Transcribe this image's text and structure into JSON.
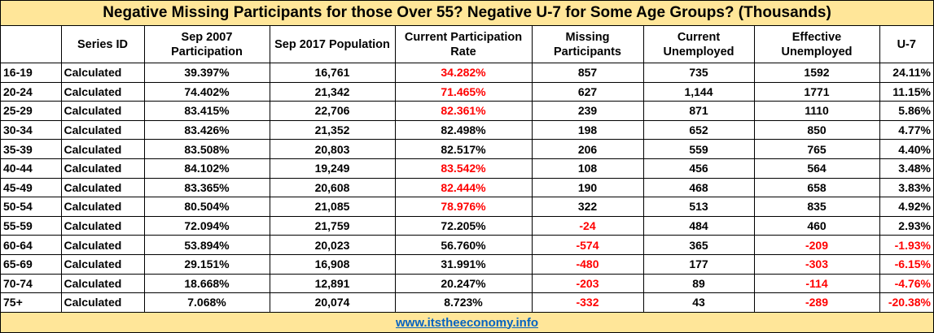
{
  "title": "Negative Missing Participants for those Over 55?  Negative U-7 for Some Age Groups? (Thousands)",
  "headers": {
    "age": "",
    "series_id": "Series ID",
    "sep2007": "Sep 2007 Participation",
    "sep2017": "Sep 2017 Population",
    "current_rate": "Current Participation Rate",
    "missing": "Missing Participants",
    "current_unemp": "Current Unemployed",
    "effective_unemp": "Effective Unemployed",
    "u7": "U-7"
  },
  "rows": [
    {
      "age": "16-19",
      "series_id": "Calculated",
      "sep2007": "39.397%",
      "sep2017": "16,761",
      "rate": "34.282%",
      "rate_red": true,
      "missing": "857",
      "missing_red": false,
      "cur_unemp": "735",
      "eff_unemp": "1592",
      "eff_red": false,
      "u7": "24.11%",
      "u7_red": false
    },
    {
      "age": "20-24",
      "series_id": "Calculated",
      "sep2007": "74.402%",
      "sep2017": "21,342",
      "rate": "71.465%",
      "rate_red": true,
      "missing": "627",
      "missing_red": false,
      "cur_unemp": "1,144",
      "eff_unemp": "1771",
      "eff_red": false,
      "u7": "11.15%",
      "u7_red": false
    },
    {
      "age": "25-29",
      "series_id": "Calculated",
      "sep2007": "83.415%",
      "sep2017": "22,706",
      "rate": "82.361%",
      "rate_red": true,
      "missing": "239",
      "missing_red": false,
      "cur_unemp": "871",
      "eff_unemp": "1110",
      "eff_red": false,
      "u7": "5.86%",
      "u7_red": false
    },
    {
      "age": "30-34",
      "series_id": "Calculated",
      "sep2007": "83.426%",
      "sep2017": "21,352",
      "rate": "82.498%",
      "rate_red": false,
      "missing": "198",
      "missing_red": false,
      "cur_unemp": "652",
      "eff_unemp": "850",
      "eff_red": false,
      "u7": "4.77%",
      "u7_red": false
    },
    {
      "age": "35-39",
      "series_id": "Calculated",
      "sep2007": "83.508%",
      "sep2017": "20,803",
      "rate": "82.517%",
      "rate_red": false,
      "missing": "206",
      "missing_red": false,
      "cur_unemp": "559",
      "eff_unemp": "765",
      "eff_red": false,
      "u7": "4.40%",
      "u7_red": false
    },
    {
      "age": "40-44",
      "series_id": "Calculated",
      "sep2007": "84.102%",
      "sep2017": "19,249",
      "rate": "83.542%",
      "rate_red": true,
      "missing": "108",
      "missing_red": false,
      "cur_unemp": "456",
      "eff_unemp": "564",
      "eff_red": false,
      "u7": "3.48%",
      "u7_red": false
    },
    {
      "age": "45-49",
      "series_id": "Calculated",
      "sep2007": "83.365%",
      "sep2017": "20,608",
      "rate": "82.444%",
      "rate_red": true,
      "missing": "190",
      "missing_red": false,
      "cur_unemp": "468",
      "eff_unemp": "658",
      "eff_red": false,
      "u7": "3.83%",
      "u7_red": false
    },
    {
      "age": "50-54",
      "series_id": "Calculated",
      "sep2007": "80.504%",
      "sep2017": "21,085",
      "rate": "78.976%",
      "rate_red": true,
      "missing": "322",
      "missing_red": false,
      "cur_unemp": "513",
      "eff_unemp": "835",
      "eff_red": false,
      "u7": "4.92%",
      "u7_red": false
    },
    {
      "age": "55-59",
      "series_id": "Calculated",
      "sep2007": "72.094%",
      "sep2017": "21,759",
      "rate": "72.205%",
      "rate_red": false,
      "missing": "-24",
      "missing_red": true,
      "cur_unemp": "484",
      "eff_unemp": "460",
      "eff_red": false,
      "u7": "2.93%",
      "u7_red": false
    },
    {
      "age": "60-64",
      "series_id": "Calculated",
      "sep2007": "53.894%",
      "sep2017": "20,023",
      "rate": "56.760%",
      "rate_red": false,
      "missing": "-574",
      "missing_red": true,
      "cur_unemp": "365",
      "eff_unemp": "-209",
      "eff_red": true,
      "u7": "-1.93%",
      "u7_red": true
    },
    {
      "age": "65-69",
      "series_id": "Calculated",
      "sep2007": "29.151%",
      "sep2017": "16,908",
      "rate": "31.991%",
      "rate_red": false,
      "missing": "-480",
      "missing_red": true,
      "cur_unemp": "177",
      "eff_unemp": "-303",
      "eff_red": true,
      "u7": "-6.15%",
      "u7_red": true
    },
    {
      "age": "70-74",
      "series_id": "Calculated",
      "sep2007": "18.668%",
      "sep2017": "12,891",
      "rate": "20.247%",
      "rate_red": false,
      "missing": "-203",
      "missing_red": true,
      "cur_unemp": "89",
      "eff_unemp": "-114",
      "eff_red": true,
      "u7": "-4.76%",
      "u7_red": true
    },
    {
      "age": "75+",
      "series_id": "Calculated",
      "sep2007": "7.068%",
      "sep2017": "20,074",
      "rate": "8.723%",
      "rate_red": false,
      "missing": "-332",
      "missing_red": true,
      "cur_unemp": "43",
      "eff_unemp": "-289",
      "eff_red": true,
      "u7": "-20.38%",
      "u7_red": true
    }
  ],
  "footer": {
    "link_text": "www.itstheeconomy.info"
  },
  "colors": {
    "header_bg": "#ffe699",
    "negative": "#ff0000",
    "link": "#0563c1"
  }
}
